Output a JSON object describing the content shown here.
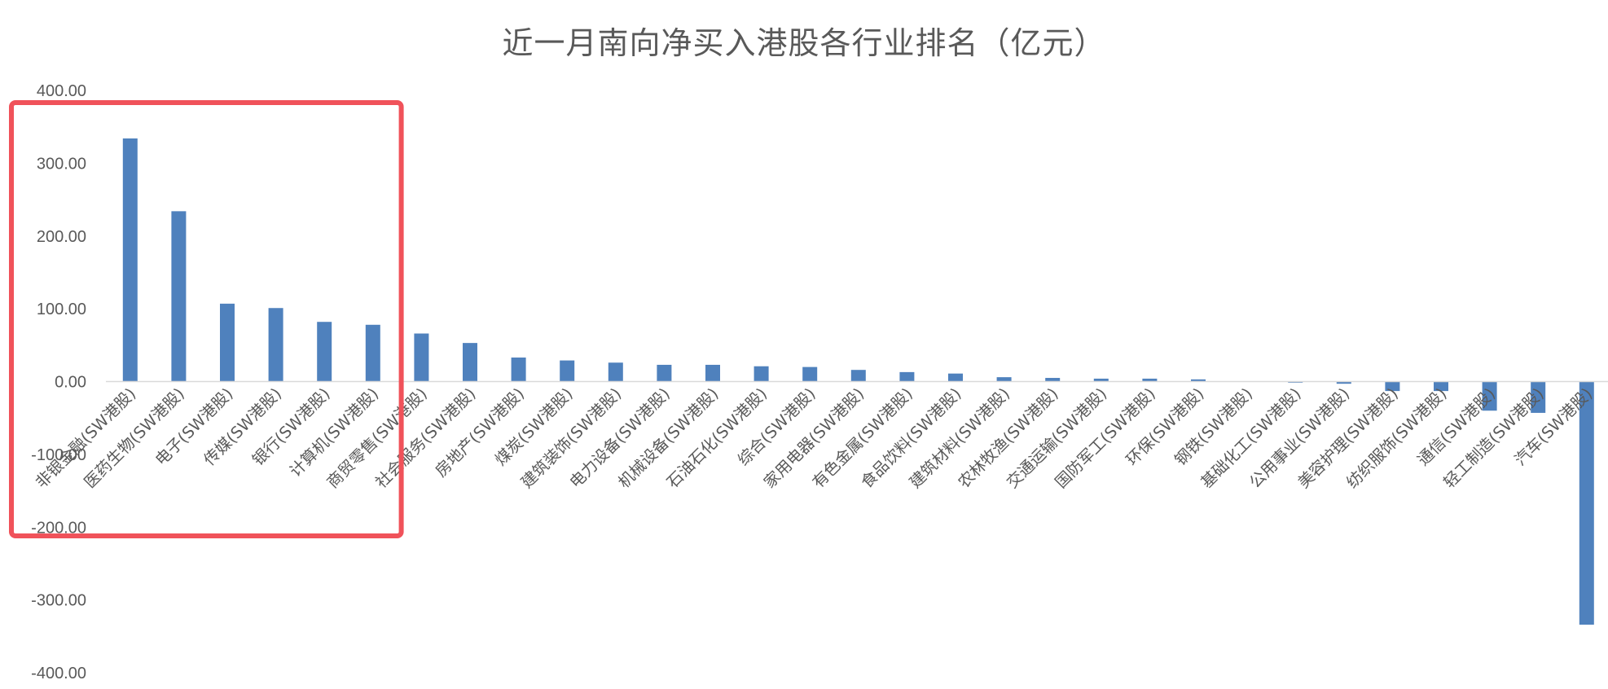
{
  "chart_data": {
    "type": "bar",
    "title": "近一月南向净买入港股各行业排名（亿元）",
    "xlabel": "",
    "ylabel": "",
    "ylim": [
      -400,
      400
    ],
    "yticks": [
      "400.00",
      "300.00",
      "200.00",
      "100.00",
      "0.00",
      "-100.00",
      "-200.00",
      "-300.00",
      "-400.00"
    ],
    "ytick_values": [
      400,
      300,
      200,
      100,
      0,
      -100,
      -200,
      -300,
      -400
    ],
    "grid": false,
    "legend": "none",
    "colors": {
      "bar": "#4f81bd",
      "highlight_box": "#f0525a",
      "axis": "#d9d9d9",
      "text": "#595959"
    },
    "highlight": {
      "from_category": "非银金融(SW港股)",
      "to_category": "计算机(SW港股)"
    },
    "categories": [
      "非银金融(SW港股)",
      "医药生物(SW港股)",
      "电子(SW港股)",
      "传媒(SW港股)",
      "银行(SW港股)",
      "计算机(SW港股)",
      "商贸零售(SW港股)",
      "社会服务(SW港股)",
      "房地产(SW港股)",
      "煤炭(SW港股)",
      "建筑装饰(SW港股)",
      "电力设备(SW港股)",
      "机械设备(SW港股)",
      "石油石化(SW港股)",
      "综合(SW港股)",
      "家用电器(SW港股)",
      "有色金属(SW港股)",
      "食品饮料(SW港股)",
      "建筑材料(SW港股)",
      "农林牧渔(SW港股)",
      "交通运输(SW港股)",
      "国防军工(SW港股)",
      "环保(SW港股)",
      "钢铁(SW港股)",
      "基础化工(SW港股)",
      "公用事业(SW港股)",
      "美容护理(SW港股)",
      "纺织服饰(SW港股)",
      "通信(SW港股)",
      "轻工制造(SW港股)",
      "汽车(SW港股)"
    ],
    "values": [
      334,
      234,
      107,
      101,
      82,
      78,
      66,
      53,
      33,
      29,
      26,
      23,
      23,
      21,
      20,
      16,
      13,
      11,
      6,
      5,
      4,
      4,
      3,
      0.5,
      -1.5,
      -3,
      -13,
      -13,
      -40,
      -43,
      -334
    ]
  }
}
